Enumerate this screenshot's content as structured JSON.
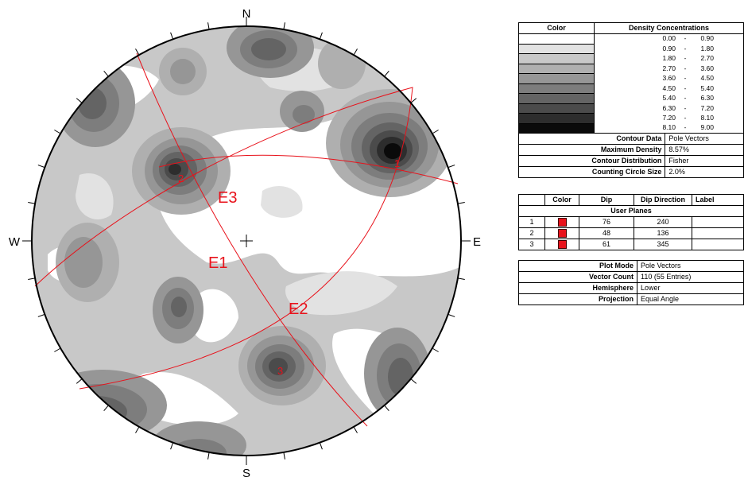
{
  "compass": {
    "north": "N",
    "south": "S",
    "east": "E",
    "west": "W"
  },
  "plane_labels": [
    "E1",
    "E2",
    "E3"
  ],
  "pole_labels": [
    "1",
    "2",
    "3"
  ],
  "legend": {
    "header_color": "Color",
    "header_density": "Density Concentrations",
    "ranges": [
      {
        "lo": "0.00",
        "sep": "-",
        "hi": "0.90",
        "color": "#ffffff"
      },
      {
        "lo": "0.90",
        "sep": "-",
        "hi": "1.80",
        "color": "#e2e2e2"
      },
      {
        "lo": "1.80",
        "sep": "-",
        "hi": "2.70",
        "color": "#c8c8c8"
      },
      {
        "lo": "2.70",
        "sep": "-",
        "hi": "3.60",
        "color": "#afafaf"
      },
      {
        "lo": "3.60",
        "sep": "-",
        "hi": "4.50",
        "color": "#969696"
      },
      {
        "lo": "4.50",
        "sep": "-",
        "hi": "5.40",
        "color": "#7d7d7d"
      },
      {
        "lo": "5.40",
        "sep": "-",
        "hi": "6.30",
        "color": "#646464"
      },
      {
        "lo": "6.30",
        "sep": "-",
        "hi": "7.20",
        "color": "#4b4b4b"
      },
      {
        "lo": "7.20",
        "sep": "-",
        "hi": "8.10",
        "color": "#2d2d2d"
      },
      {
        "lo": "8.10",
        "sep": "-",
        "hi": "9.00",
        "color": "#0a0a0a"
      }
    ],
    "contour_data_label": "Contour Data",
    "contour_data_value": "Pole Vectors",
    "max_density_label": "Maximum Density",
    "max_density_value": "8.57%",
    "contour_distribution_label": "Contour Distribution",
    "contour_distribution_value": "Fisher",
    "counting_circle_label": "Counting Circle Size",
    "counting_circle_value": "2.0%"
  },
  "planes_table": {
    "headers": [
      "",
      "Color",
      "Dip",
      "Dip Direction",
      "Label"
    ],
    "section": "User Planes",
    "rows": [
      {
        "id": "1",
        "color": "#e8121b",
        "dip": "76",
        "dip_direction": "240",
        "label": ""
      },
      {
        "id": "2",
        "color": "#e8121b",
        "dip": "48",
        "dip_direction": "136",
        "label": ""
      },
      {
        "id": "3",
        "color": "#e8121b",
        "dip": "61",
        "dip_direction": "345",
        "label": ""
      }
    ]
  },
  "info": {
    "plot_mode_label": "Plot Mode",
    "plot_mode_value": "Pole Vectors",
    "vector_count_label": "Vector Count",
    "vector_count_value": "110 (55 Entries)",
    "hemisphere_label": "Hemisphere",
    "hemisphere_value": "Lower",
    "projection_label": "Projection",
    "projection_value": "Equal Angle"
  }
}
